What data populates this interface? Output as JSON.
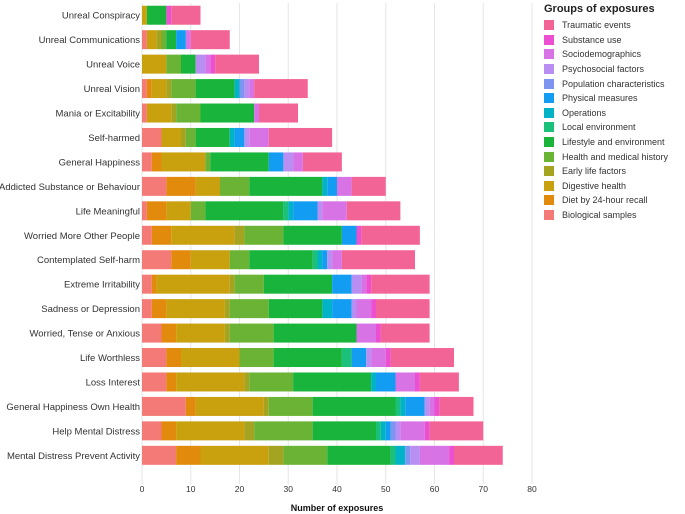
{
  "chart_data": {
    "type": "bar",
    "orientation": "horizontal",
    "stacked": true,
    "xlabel": "Number of exposures",
    "ylabel": "",
    "xlim": [
      0,
      80
    ],
    "xticks": [
      0,
      10,
      20,
      30,
      40,
      50,
      60,
      70,
      80
    ],
    "grid": true,
    "legend_title": "Groups of exposures",
    "legend_position": "right",
    "categories": [
      "Unreal Conspiracy",
      "Unreal Communications",
      "Unreal Voice",
      "Unreal Vision",
      "Mania or Excitability",
      "Self-harmed",
      "General Happiness",
      "Addicted Substance or Behaviour",
      "Life Meaningful",
      "Worried More Other People",
      "Contemplated Self-harm",
      "Extreme Irritability",
      "Sadness or Depression",
      "Worried, Tense or Anxious",
      "Life Worthless",
      "Loss Interest",
      "General Happiness Own Health",
      "Help Mental Distress",
      "Mental Distress Prevent Activity"
    ],
    "stack_order": [
      "Biological samples",
      "Diet by 24-hour recall",
      "Digestive health",
      "Early life factors",
      "Health and medical history",
      "Lifestyle and environment",
      "Local environment",
      "Operations",
      "Physical measures",
      "Population characteristics",
      "Psychosocial factors",
      "Sociodemographics",
      "Substance use",
      "Traumatic events"
    ],
    "series": [
      {
        "name": "Traumatic events",
        "color": "#f36496",
        "values": [
          6,
          8,
          9,
          11,
          8,
          13,
          8,
          7,
          11,
          12,
          15,
          12,
          11,
          10,
          13,
          8,
          7,
          11,
          10
        ]
      },
      {
        "name": "Substance use",
        "color": "#ec4fd0",
        "values": [
          1,
          0,
          1,
          0,
          0,
          0,
          0,
          0,
          0,
          1,
          0,
          1,
          1,
          1,
          1,
          1,
          1,
          1,
          1
        ]
      },
      {
        "name": "Sociodemographics",
        "color": "#d873e6",
        "values": [
          0,
          1,
          1,
          1,
          1,
          4,
          2,
          3,
          5,
          0,
          2,
          1,
          3,
          4,
          3,
          4,
          1,
          5,
          6
        ]
      },
      {
        "name": "Psychosocial factors",
        "color": "#b88ef2",
        "values": [
          0,
          0,
          2,
          1,
          0,
          1,
          2,
          0,
          1,
          0,
          1,
          2,
          1,
          0,
          1,
          0,
          1,
          1,
          2
        ]
      },
      {
        "name": "Population characteristics",
        "color": "#7d95f1",
        "values": [
          0,
          0,
          0,
          1,
          0,
          0,
          0,
          0,
          0,
          0,
          0,
          0,
          0,
          0,
          0,
          0,
          0,
          1,
          1
        ]
      },
      {
        "name": "Physical measures",
        "color": "#129df2",
        "values": [
          0,
          2,
          0,
          0,
          0,
          2,
          3,
          2,
          5,
          3,
          1,
          4,
          4,
          0,
          3,
          4,
          4,
          1,
          0
        ]
      },
      {
        "name": "Operations",
        "color": "#00b3c6",
        "values": [
          0,
          0,
          0,
          1,
          0,
          1,
          0,
          1,
          1,
          0,
          1,
          0,
          2,
          0,
          0,
          1,
          1,
          1,
          2
        ]
      },
      {
        "name": "Local environment",
        "color": "#1bc07b",
        "values": [
          0,
          0,
          0,
          0,
          0,
          0,
          0,
          0,
          1,
          0,
          1,
          0,
          0,
          0,
          2,
          0,
          1,
          1,
          1
        ]
      },
      {
        "name": "Lifestyle and environment",
        "color": "#19b43c",
        "values": [
          4,
          2,
          3,
          8,
          11,
          7,
          12,
          15,
          16,
          12,
          13,
          14,
          11,
          17,
          14,
          16,
          17,
          13,
          13
        ]
      },
      {
        "name": "Health and medical history",
        "color": "#6bb334",
        "values": [
          0,
          1,
          3,
          5,
          5,
          2,
          1,
          6,
          3,
          8,
          4,
          6,
          8,
          9,
          7,
          9,
          9,
          12,
          9
        ]
      },
      {
        "name": "Early life factors",
        "color": "#a4a420",
        "values": [
          0,
          1,
          0,
          1,
          1,
          1,
          0,
          0,
          0,
          2,
          0,
          1,
          1,
          1,
          0,
          1,
          1,
          2,
          3
        ]
      },
      {
        "name": "Digestive health",
        "color": "#c9a00e",
        "values": [
          1,
          2,
          5,
          3,
          5,
          4,
          9,
          5,
          5,
          13,
          8,
          15,
          12,
          10,
          12,
          14,
          14,
          14,
          14
        ]
      },
      {
        "name": "Diet by 24-hour recall",
        "color": "#e18a0c",
        "values": [
          0,
          0,
          0,
          1,
          0,
          0,
          2,
          6,
          4,
          4,
          4,
          1,
          3,
          3,
          3,
          2,
          2,
          3,
          5
        ]
      },
      {
        "name": "Biological samples",
        "color": "#f47a78",
        "values": [
          0,
          1,
          0,
          1,
          1,
          4,
          2,
          5,
          1,
          2,
          6,
          2,
          2,
          4,
          5,
          5,
          9,
          4,
          7
        ]
      }
    ]
  }
}
